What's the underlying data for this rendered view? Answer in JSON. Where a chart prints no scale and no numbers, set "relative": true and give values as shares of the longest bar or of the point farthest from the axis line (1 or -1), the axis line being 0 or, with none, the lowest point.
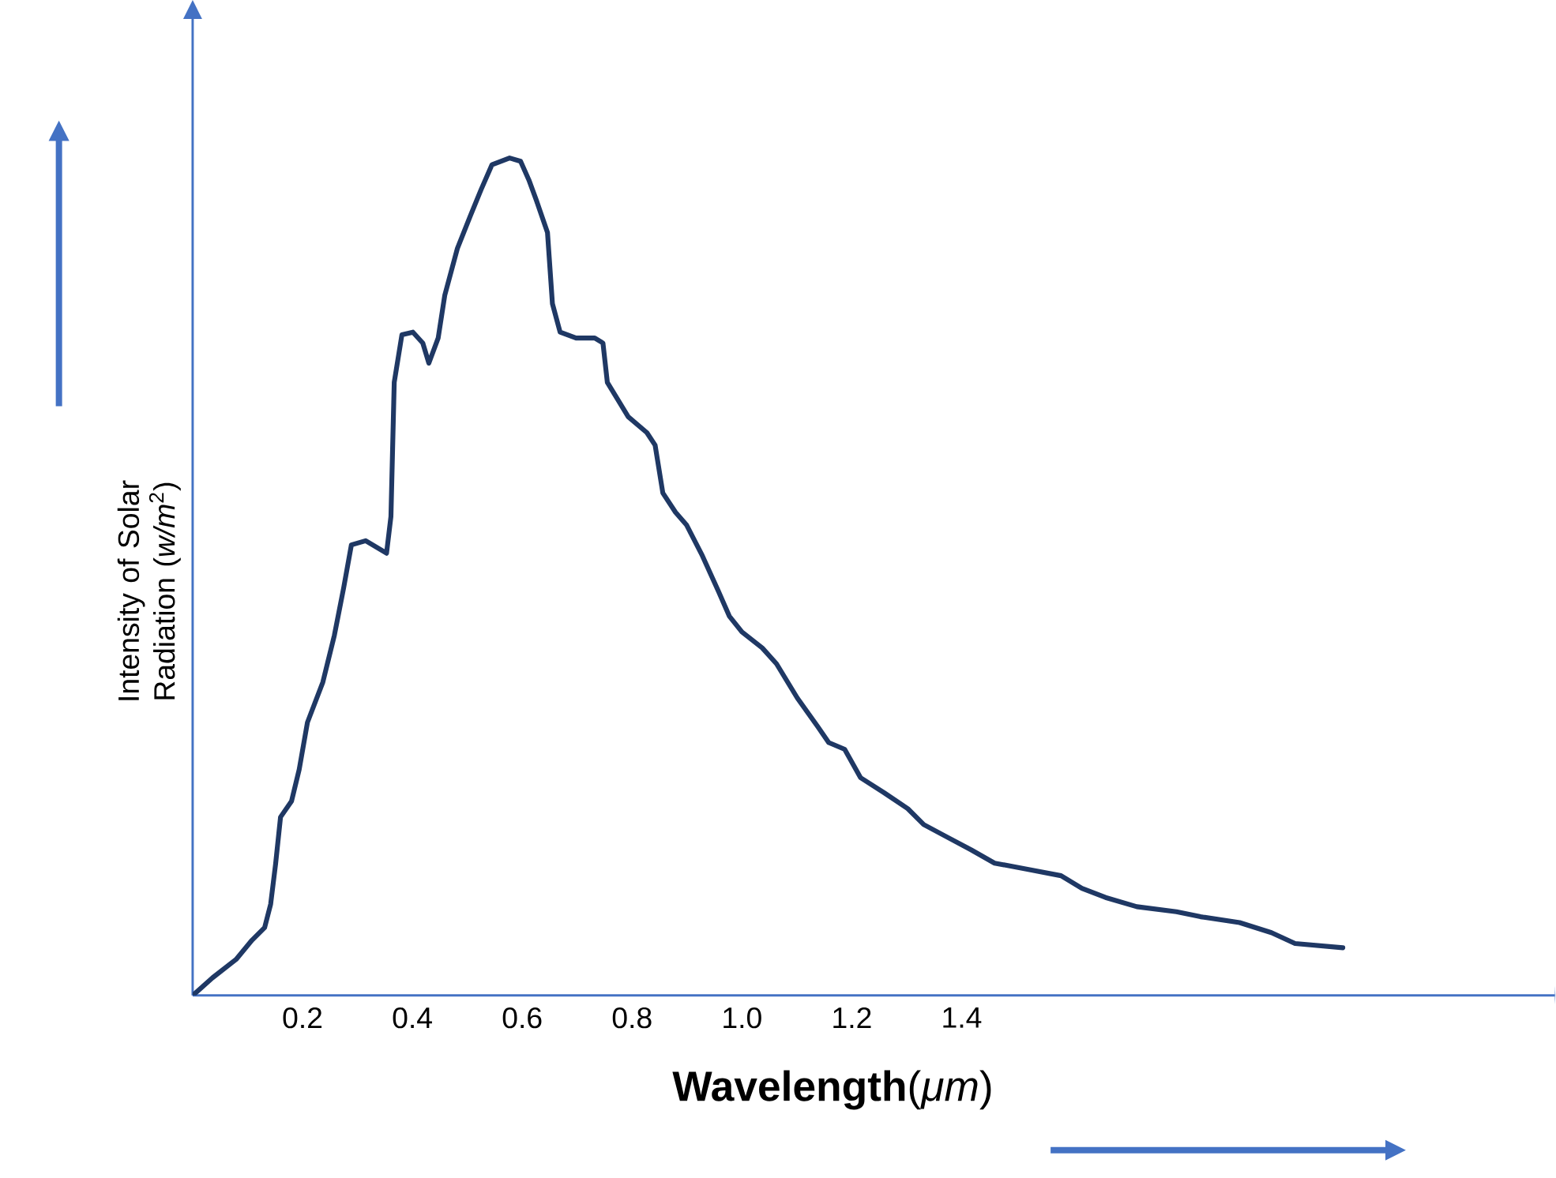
{
  "chart_data": {
    "type": "line",
    "relative": true,
    "xlabel": "**Wavelength**(*μm*)",
    "ylabel": "Intensity of Solar Radiation (*w/m*$^{2}$)",
    "xlim": [
      0,
      2.48
    ],
    "xticks": [
      0.2,
      0.4,
      0.6,
      0.8,
      {
        "value": 1,
        "label": "1.0"
      },
      1.2,
      1.4
    ],
    "marker": "none",
    "line_style": "solid",
    "tick_labels": "x",
    "series": [
      {
        "color": "#1f3864",
        "x": [
          0,
          0.036,
          0.079,
          0.108,
          0.131,
          0.142,
          0.151,
          0.16,
          0.18,
          0.194,
          0.209,
          0.237,
          0.258,
          0.275,
          0.289,
          0.315,
          0.353,
          0.361,
          0.367,
          0.381,
          0.401,
          0.419,
          0.43,
          0.447,
          0.459,
          0.482,
          0.505,
          0.525,
          0.545,
          0.577,
          0.597,
          0.612,
          0.626,
          0.646,
          0.655,
          0.669,
          0.698,
          0.732,
          0.747,
          0.755,
          0.793,
          0.827,
          0.842,
          0.856,
          0.879,
          0.899,
          0.928,
          0.957,
          0.977,
          1.0,
          1.037,
          1.063,
          1.101,
          1.138,
          1.158,
          1.187,
          1.216,
          1.259,
          1.302,
          1.331,
          1.374,
          1.417,
          1.46,
          1.518,
          1.581,
          1.619,
          1.662,
          1.719,
          1.791,
          1.835,
          1.906,
          1.964,
          2.007,
          2.094
        ],
        "values": [
          0,
          0.021,
          0.043,
          0.066,
          0.081,
          0.109,
          0.157,
          0.213,
          0.232,
          0.27,
          0.326,
          0.374,
          0.43,
          0.487,
          0.538,
          0.543,
          0.528,
          0.572,
          0.732,
          0.789,
          0.792,
          0.779,
          0.755,
          0.785,
          0.836,
          0.892,
          0.93,
          0.962,
          0.992,
          1,
          0.996,
          0.974,
          0.949,
          0.911,
          0.826,
          0.792,
          0.785,
          0.785,
          0.779,
          0.732,
          0.691,
          0.672,
          0.657,
          0.6,
          0.577,
          0.562,
          0.525,
          0.483,
          0.453,
          0.434,
          0.415,
          0.396,
          0.355,
          0.321,
          0.302,
          0.294,
          0.26,
          0.242,
          0.223,
          0.204,
          0.189,
          0.174,
          0.158,
          0.151,
          0.143,
          0.128,
          0.117,
          0.106,
          0.1,
          0.094,
          0.087,
          0.075,
          0.062,
          0.057
        ]
      }
    ]
  }
}
